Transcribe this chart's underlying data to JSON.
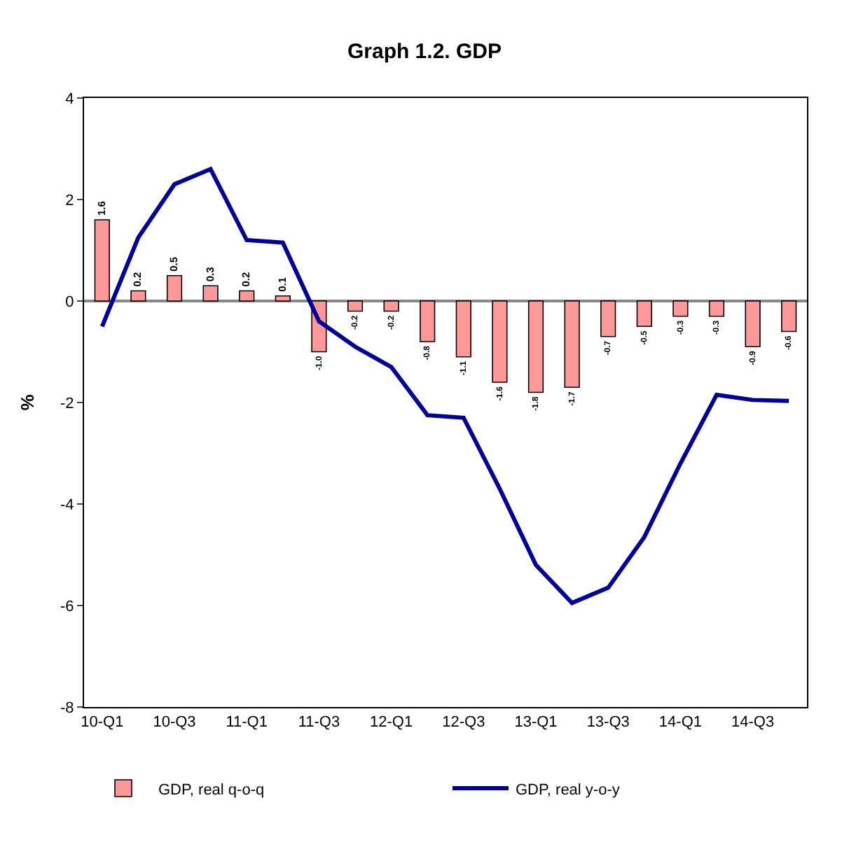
{
  "chart_data": {
    "type": "bar",
    "title": "Graph 1.2. GDP",
    "ylabel": "%",
    "categories": [
      "10-Q1",
      null,
      "10-Q3",
      null,
      "11-Q1",
      null,
      "11-Q3",
      null,
      "12-Q1",
      null,
      "12-Q3",
      null,
      "13-Q1",
      null,
      "13-Q3",
      null,
      "14-Q1",
      null,
      "14-Q3",
      null
    ],
    "series": [
      {
        "name": "GDP, real q-o-q",
        "color": "#ff9999",
        "values": [
          1.6,
          0.2,
          0.5,
          0.3,
          0.2,
          0.1,
          -1.0,
          -0.2,
          -0.2,
          -0.8,
          -1.1,
          -1.6,
          -1.8,
          -1.7,
          -0.7,
          -0.5,
          -0.3,
          -0.3,
          -0.9,
          -0.6
        ],
        "value_labels": [
          "1.6",
          "0.2",
          "0.5",
          "0.3",
          "0.2",
          "0.1",
          "-1.0",
          "-0.2",
          "-0.2",
          "-0.8",
          "-1.1",
          "-1.6",
          "-1.8",
          "-1.7",
          "-0.7",
          "-0.5",
          "-0.3",
          "-0.3",
          "-0.9",
          "-0.6"
        ]
      },
      {
        "name": "GDP, real y-o-y",
        "type": "line",
        "color": "#000099",
        "values": [
          -0.5,
          1.25,
          2.3,
          2.6,
          1.2,
          1.15,
          -0.4,
          -0.9,
          -1.3,
          -2.25,
          -2.3,
          -3.7,
          -5.2,
          -5.95,
          -5.65,
          -4.65,
          -3.2,
          -1.85,
          -1.95,
          -1.97
        ]
      }
    ],
    "ylim": [
      -8,
      4
    ],
    "yticks": [
      -8,
      -6,
      -4,
      -2,
      0,
      2,
      4
    ],
    "grid": false,
    "ref_lines": [
      {
        "axis": "y",
        "value": 0,
        "color": "#888888"
      }
    ],
    "legend": "bottom",
    "marker": "none",
    "line_style": "solid"
  }
}
